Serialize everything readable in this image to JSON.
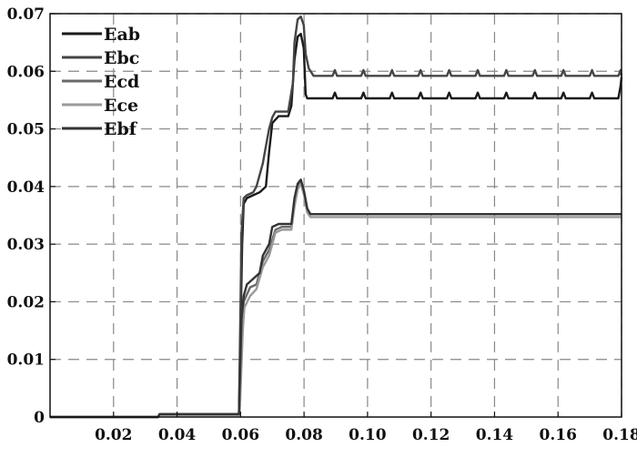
{
  "chart_data": {
    "type": "line",
    "title": "",
    "xlabel": "",
    "ylabel": "",
    "xlim": [
      0,
      0.18
    ],
    "ylim": [
      0,
      0.07
    ],
    "xticks": [
      "0.02",
      "0.04",
      "0.06",
      "0.08",
      "0.10",
      "0.12",
      "0.14",
      "0.16",
      "0.18"
    ],
    "xtick_values": [
      0.02,
      0.04,
      0.06,
      0.08,
      0.1,
      0.12,
      0.14,
      0.16,
      0.18
    ],
    "yticks": [
      "0",
      "0.01",
      "0.02",
      "0.03",
      "0.04",
      "0.05",
      "0.06",
      "0.07"
    ],
    "ytick_values": [
      0,
      0.01,
      0.02,
      0.03,
      0.04,
      0.05,
      0.06,
      0.07
    ],
    "grid": true,
    "grid_style": "dashed",
    "legend_position": "top-left",
    "series": [
      {
        "name": "Eab",
        "color": "#1a1a1a",
        "points": [
          [
            0,
            0
          ],
          [
            0.034,
            0
          ],
          [
            0.0345,
            0.0005
          ],
          [
            0.0595,
            0.0005
          ],
          [
            0.0605,
            0.03
          ],
          [
            0.061,
            0.037
          ],
          [
            0.062,
            0.038
          ],
          [
            0.064,
            0.0385
          ],
          [
            0.066,
            0.039
          ],
          [
            0.068,
            0.04
          ],
          [
            0.069,
            0.046
          ],
          [
            0.07,
            0.051
          ],
          [
            0.072,
            0.0522
          ],
          [
            0.075,
            0.0522
          ],
          [
            0.076,
            0.054
          ],
          [
            0.077,
            0.062
          ],
          [
            0.078,
            0.066
          ],
          [
            0.079,
            0.0665
          ],
          [
            0.0799,
            0.064
          ],
          [
            0.0805,
            0.056
          ],
          [
            0.081,
            0.0553
          ],
          [
            0.089,
            0.0553
          ],
          [
            0.0897,
            0.0563
          ],
          [
            0.0904,
            0.0553
          ],
          [
            0.098,
            0.0553
          ],
          [
            0.0987,
            0.0563
          ],
          [
            0.0994,
            0.0553
          ],
          [
            0.107,
            0.0553
          ],
          [
            0.1077,
            0.0563
          ],
          [
            0.1084,
            0.0553
          ],
          [
            0.116,
            0.0553
          ],
          [
            0.1167,
            0.0563
          ],
          [
            0.1174,
            0.0553
          ],
          [
            0.125,
            0.0553
          ],
          [
            0.1257,
            0.0563
          ],
          [
            0.1264,
            0.0553
          ],
          [
            0.134,
            0.0553
          ],
          [
            0.1347,
            0.0563
          ],
          [
            0.1354,
            0.0553
          ],
          [
            0.143,
            0.0553
          ],
          [
            0.1437,
            0.0563
          ],
          [
            0.1444,
            0.0553
          ],
          [
            0.152,
            0.0553
          ],
          [
            0.1527,
            0.0563
          ],
          [
            0.1534,
            0.0553
          ],
          [
            0.161,
            0.0553
          ],
          [
            0.1617,
            0.0563
          ],
          [
            0.1624,
            0.0553
          ],
          [
            0.17,
            0.0553
          ],
          [
            0.1707,
            0.0563
          ],
          [
            0.1714,
            0.0553
          ],
          [
            0.179,
            0.0553
          ],
          [
            0.1797,
            0.0575
          ],
          [
            0.18,
            0.059
          ]
        ]
      },
      {
        "name": "Ebc",
        "color": "#454545",
        "points": [
          [
            0,
            0
          ],
          [
            0.034,
            0
          ],
          [
            0.0345,
            0.0005
          ],
          [
            0.0595,
            0.0005
          ],
          [
            0.0603,
            0.032
          ],
          [
            0.061,
            0.038
          ],
          [
            0.062,
            0.0385
          ],
          [
            0.064,
            0.039
          ],
          [
            0.065,
            0.04
          ],
          [
            0.067,
            0.044
          ],
          [
            0.068,
            0.047
          ],
          [
            0.069,
            0.05
          ],
          [
            0.07,
            0.052
          ],
          [
            0.071,
            0.053
          ],
          [
            0.075,
            0.053
          ],
          [
            0.0765,
            0.058
          ],
          [
            0.077,
            0.065
          ],
          [
            0.078,
            0.069
          ],
          [
            0.079,
            0.0695
          ],
          [
            0.0799,
            0.068
          ],
          [
            0.0805,
            0.063
          ],
          [
            0.0815,
            0.0605
          ],
          [
            0.083,
            0.0592
          ],
          [
            0.089,
            0.0592
          ],
          [
            0.0897,
            0.0602
          ],
          [
            0.0904,
            0.0592
          ],
          [
            0.098,
            0.0592
          ],
          [
            0.0987,
            0.0602
          ],
          [
            0.0994,
            0.0592
          ],
          [
            0.107,
            0.0592
          ],
          [
            0.1077,
            0.0602
          ],
          [
            0.1084,
            0.0592
          ],
          [
            0.116,
            0.0592
          ],
          [
            0.1167,
            0.0602
          ],
          [
            0.1174,
            0.0592
          ],
          [
            0.125,
            0.0592
          ],
          [
            0.1257,
            0.0602
          ],
          [
            0.1264,
            0.0592
          ],
          [
            0.134,
            0.0592
          ],
          [
            0.1347,
            0.0602
          ],
          [
            0.1354,
            0.0592
          ],
          [
            0.143,
            0.0592
          ],
          [
            0.1437,
            0.0602
          ],
          [
            0.1444,
            0.0592
          ],
          [
            0.152,
            0.0592
          ],
          [
            0.1527,
            0.0602
          ],
          [
            0.1534,
            0.0592
          ],
          [
            0.161,
            0.0592
          ],
          [
            0.1617,
            0.0602
          ],
          [
            0.1624,
            0.0592
          ],
          [
            0.17,
            0.0592
          ],
          [
            0.1707,
            0.0602
          ],
          [
            0.1714,
            0.0592
          ],
          [
            0.179,
            0.0592
          ],
          [
            0.1797,
            0.0602
          ],
          [
            0.18,
            0.0592
          ]
        ]
      },
      {
        "name": "Ecd",
        "color": "#6a6a6a",
        "points": [
          [
            0,
            0
          ],
          [
            0.034,
            0
          ],
          [
            0.0345,
            0.0004
          ],
          [
            0.0595,
            0.0004
          ],
          [
            0.0605,
            0.016
          ],
          [
            0.061,
            0.02
          ],
          [
            0.063,
            0.0225
          ],
          [
            0.065,
            0.023
          ],
          [
            0.067,
            0.027
          ],
          [
            0.069,
            0.029
          ],
          [
            0.071,
            0.0325
          ],
          [
            0.073,
            0.033
          ],
          [
            0.076,
            0.033
          ],
          [
            0.077,
            0.037
          ],
          [
            0.078,
            0.04
          ],
          [
            0.079,
            0.041
          ],
          [
            0.08,
            0.039
          ],
          [
            0.081,
            0.036
          ],
          [
            0.082,
            0.0352
          ],
          [
            0.18,
            0.0352
          ]
        ]
      },
      {
        "name": "Ece",
        "color": "#9a9a9a",
        "points": [
          [
            0,
            0
          ],
          [
            0.034,
            0
          ],
          [
            0.0345,
            0.0003
          ],
          [
            0.0597,
            0.0003
          ],
          [
            0.0607,
            0.015
          ],
          [
            0.0612,
            0.019
          ],
          [
            0.063,
            0.021
          ],
          [
            0.065,
            0.0222
          ],
          [
            0.067,
            0.026
          ],
          [
            0.069,
            0.028
          ],
          [
            0.071,
            0.032
          ],
          [
            0.073,
            0.0325
          ],
          [
            0.076,
            0.0325
          ],
          [
            0.077,
            0.0365
          ],
          [
            0.078,
            0.0395
          ],
          [
            0.079,
            0.0405
          ],
          [
            0.08,
            0.0385
          ],
          [
            0.081,
            0.0355
          ],
          [
            0.082,
            0.0347
          ],
          [
            0.18,
            0.0347
          ]
        ]
      },
      {
        "name": "Ebf",
        "color": "#333333",
        "points": [
          [
            0,
            0
          ],
          [
            0.034,
            0
          ],
          [
            0.0345,
            0.0005
          ],
          [
            0.0595,
            0.0005
          ],
          [
            0.0603,
            0.017
          ],
          [
            0.061,
            0.021
          ],
          [
            0.062,
            0.023
          ],
          [
            0.064,
            0.024
          ],
          [
            0.066,
            0.025
          ],
          [
            0.067,
            0.028
          ],
          [
            0.069,
            0.03
          ],
          [
            0.07,
            0.033
          ],
          [
            0.072,
            0.0335
          ],
          [
            0.076,
            0.0335
          ],
          [
            0.077,
            0.038
          ],
          [
            0.078,
            0.0405
          ],
          [
            0.079,
            0.0412
          ],
          [
            0.08,
            0.0392
          ],
          [
            0.081,
            0.0362
          ],
          [
            0.082,
            0.0352
          ],
          [
            0.18,
            0.0352
          ]
        ]
      }
    ]
  }
}
